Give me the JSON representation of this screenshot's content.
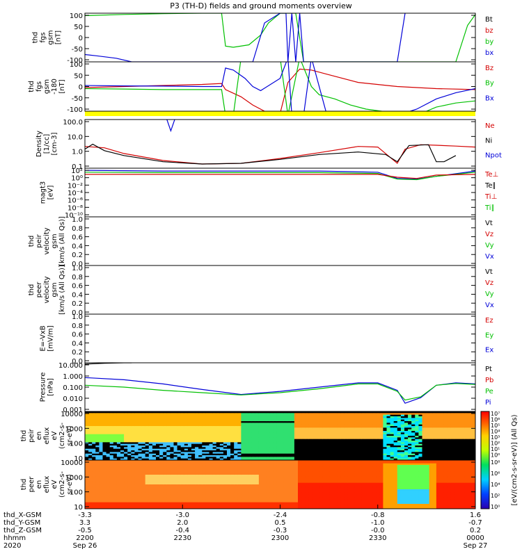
{
  "title": "P3 (TH-D) fields and ground moments overview",
  "colors": {
    "black": "#000000",
    "red": "#d40000",
    "green": "#00c000",
    "blue": "#0000d8",
    "yellow": "#ffff00",
    "axis": "#000000"
  },
  "chart_data": [
    {
      "panel": "fgs_gsm",
      "type": "line",
      "ylabel_lines": [
        "thd",
        "fgs",
        "gsm",
        "[nT]"
      ],
      "ylim": [
        -100,
        100
      ],
      "yticks": [
        "100",
        "50",
        "0",
        "-50",
        "-100"
      ],
      "legend": [
        {
          "label": "Bt",
          "color": "#000000"
        },
        {
          "label": "bz",
          "color": "#d40000"
        },
        {
          "label": "by",
          "color": "#00c000"
        },
        {
          "label": "bx",
          "color": "#0000d8"
        }
      ],
      "series": [
        {
          "name": "by",
          "color": "#00c000",
          "x": [
            0,
            0.1,
            0.2,
            0.3,
            0.35,
            0.36,
            0.38,
            0.42,
            0.45,
            0.47,
            0.5,
            0.54,
            0.56,
            0.6,
            0.95,
            0.98,
            1.0
          ],
          "y": [
            90,
            95,
            98,
            100,
            100,
            -35,
            -40,
            -30,
            10,
            60,
            100,
            100,
            -100,
            -100,
            -100,
            50,
            95
          ]
        },
        {
          "name": "bx",
          "color": "#0000d8",
          "x": [
            0,
            0.03,
            0.08,
            0.12,
            0.43,
            0.46,
            0.5,
            0.515,
            0.52,
            0.53,
            0.54,
            0.55,
            0.56,
            0.8,
            0.82
          ],
          "y": [
            -70,
            -75,
            -85,
            -100,
            -100,
            60,
            100,
            100,
            -100,
            100,
            -100,
            100,
            -100,
            -100,
            100
          ]
        }
      ]
    },
    {
      "panel": "fgs_gse",
      "type": "line",
      "ylabel_lines": [
        "thd",
        "fgs",
        "gsm",
        "-180",
        "[nT]"
      ],
      "ylim": [
        -120,
        120
      ],
      "yticks": [
        "100",
        "50",
        "0",
        "-50",
        "-100"
      ],
      "legend": [
        {
          "label": "Bz",
          "color": "#d40000"
        },
        {
          "label": "By",
          "color": "#00c000"
        },
        {
          "label": "Bx",
          "color": "#0000d8"
        }
      ],
      "series": [
        {
          "name": "Bz",
          "color": "#d40000",
          "x": [
            0,
            0.1,
            0.2,
            0.3,
            0.35,
            0.36,
            0.4,
            0.43,
            0.47,
            0.5,
            0.52,
            0.55,
            0.58,
            0.62,
            0.7,
            0.8,
            0.9,
            1.0
          ],
          "y": [
            -5,
            0,
            5,
            10,
            15,
            -15,
            -50,
            -90,
            -130,
            -130,
            20,
            85,
            80,
            60,
            20,
            0,
            -10,
            -15
          ]
        },
        {
          "name": "By",
          "color": "#00c000",
          "x": [
            0,
            0.1,
            0.2,
            0.3,
            0.35,
            0.36,
            0.38,
            0.4,
            0.5,
            0.52,
            0.55,
            0.58,
            0.6,
            0.64,
            0.68,
            0.72,
            0.8,
            0.85,
            0.9,
            0.95,
            1.0
          ],
          "y": [
            -10,
            -12,
            -15,
            -15,
            -15,
            -140,
            -140,
            140,
            140,
            -140,
            140,
            0,
            -40,
            -60,
            -90,
            -110,
            -130,
            -140,
            -100,
            -80,
            -70
          ]
        },
        {
          "name": "Bx",
          "color": "#0000d8",
          "x": [
            0,
            0.1,
            0.2,
            0.3,
            0.35,
            0.36,
            0.38,
            0.41,
            0.43,
            0.45,
            0.5,
            0.52,
            0.53,
            0.56,
            0.58,
            0.62,
            0.8,
            0.85,
            0.9,
            0.95,
            1.0
          ],
          "y": [
            5,
            3,
            2,
            0,
            0,
            90,
            80,
            40,
            0,
            -20,
            40,
            140,
            -140,
            -140,
            140,
            -140,
            -140,
            -110,
            -60,
            -30,
            -10
          ]
        }
      ]
    },
    {
      "panel": "density",
      "type": "line",
      "ylog": true,
      "ylabel_lines": [
        "Density",
        "[1/cc]",
        "[cm-3]"
      ],
      "ylim": [
        0.1,
        100
      ],
      "yticks": [
        "100.0",
        "10.0",
        "1.0",
        "0.1"
      ],
      "legend": [
        {
          "label": "Ne",
          "color": "#d40000"
        },
        {
          "label": "Ni",
          "color": "#000000"
        },
        {
          "label": "Npot",
          "color": "#0000d8"
        }
      ],
      "series": [
        {
          "name": "Ne",
          "color": "#d40000",
          "x": [
            0,
            0.05,
            0.1,
            0.2,
            0.3,
            0.4,
            0.5,
            0.6,
            0.7,
            0.75,
            0.8,
            0.82,
            0.86,
            0.9,
            0.95,
            1.0
          ],
          "y": [
            2.2,
            1.8,
            0.8,
            0.3,
            0.18,
            0.2,
            0.4,
            0.9,
            2.2,
            2.0,
            0.2,
            1.5,
            2.8,
            2.6,
            2.3,
            2.0
          ]
        },
        {
          "name": "Ni",
          "color": "#000000",
          "x": [
            0,
            0.02,
            0.05,
            0.1,
            0.2,
            0.3,
            0.4,
            0.5,
            0.6,
            0.7,
            0.77,
            0.8,
            0.83,
            0.88,
            0.9,
            0.92,
            0.95
          ],
          "y": [
            1.5,
            3,
            1.2,
            0.6,
            0.25,
            0.18,
            0.2,
            0.35,
            0.7,
            1.0,
            0.7,
            0.25,
            2.5,
            2.8,
            0.25,
            0.25,
            0.6
          ]
        },
        {
          "name": "Npot",
          "color": "#0000d8",
          "x": [
            0.21,
            0.22,
            0.23
          ],
          "y": [
            100,
            20,
            100
          ]
        }
      ]
    },
    {
      "panel": "temperature",
      "type": "line",
      "ylog": true,
      "ylabel_lines": [
        "magt3",
        "[eV]"
      ],
      "ylim": [
        1e-10,
        100
      ],
      "yticks": [
        "10²",
        "10⁰",
        "10⁻²",
        "10⁻⁴",
        "10⁻⁶",
        "10⁻⁸",
        "10⁻¹⁰"
      ],
      "legend": [
        {
          "label": "Te⊥",
          "color": "#d40000"
        },
        {
          "label": "Te∥",
          "color": "#000000"
        },
        {
          "label": "Ti⊥",
          "color": "#d40000"
        },
        {
          "label": "Ti∥",
          "color": "#00c000"
        }
      ],
      "series": [
        {
          "name": "Ti",
          "color": "#0000d8",
          "x": [
            0,
            0.2,
            0.4,
            0.6,
            0.75,
            0.8,
            0.85,
            0.9,
            1.0
          ],
          "y": [
            30,
            20,
            20,
            20,
            10,
            0.3,
            0.2,
            1,
            20
          ]
        },
        {
          "name": "Ti∥",
          "color": "#00c000",
          "x": [
            0,
            0.2,
            0.4,
            0.6,
            0.75,
            0.8,
            0.85,
            0.9,
            1.0
          ],
          "y": [
            10,
            8,
            8,
            8,
            5,
            0.2,
            0.15,
            1,
            10
          ]
        },
        {
          "name": "Te",
          "color": "#d40000",
          "x": [
            0,
            0.2,
            0.4,
            0.6,
            0.75,
            0.8,
            0.85,
            0.9,
            1.0
          ],
          "y": [
            3,
            3,
            3,
            3,
            3,
            0.6,
            0.3,
            2,
            3
          ]
        }
      ]
    },
    {
      "panel": "peir_velocity",
      "type": "line",
      "ylabel_lines": [
        "thd",
        "peir",
        "velocity",
        "gsm",
        "[km/s (All Qs)]"
      ],
      "ylim": [
        0,
        1
      ],
      "yticks": [
        "1.0",
        "0.8",
        "0.6",
        "0.4",
        "0.2",
        "0.0"
      ],
      "legend": [
        {
          "label": "Vt",
          "color": "#000000"
        },
        {
          "label": "Vz",
          "color": "#d40000"
        },
        {
          "label": "Vy",
          "color": "#00c000"
        },
        {
          "label": "Vx",
          "color": "#0000d8"
        }
      ],
      "series": []
    },
    {
      "panel": "peer_velocity",
      "type": "line",
      "ylabel_lines": [
        "thd",
        "peer",
        "velocity",
        "gsm",
        "[km/s (All Qs)]"
      ],
      "ylim": [
        0,
        1
      ],
      "yticks": [
        "1.0",
        "0.8",
        "0.6",
        "0.4",
        "0.2",
        "0.0"
      ],
      "legend": [
        {
          "label": "Vt",
          "color": "#000000"
        },
        {
          "label": "Vz",
          "color": "#d40000"
        },
        {
          "label": "Vy",
          "color": "#00c000"
        },
        {
          "label": "Vx",
          "color": "#0000d8"
        }
      ],
      "series": []
    },
    {
      "panel": "efield",
      "type": "line",
      "ylabel_lines": [
        "E=-VxB",
        "[mV/m]"
      ],
      "ylim": [
        0,
        1
      ],
      "yticks": [
        "1.0",
        "0.8",
        "0.6",
        "0.4",
        "0.2",
        "0.0"
      ],
      "legend": [
        {
          "label": "Ez",
          "color": "#d40000"
        },
        {
          "label": "Ey",
          "color": "#00c000"
        },
        {
          "label": "Ex",
          "color": "#0000d8"
        }
      ],
      "series": []
    },
    {
      "panel": "pressure",
      "type": "line",
      "ylog": true,
      "ylabel_lines": [
        "Pressure",
        "[nPa]"
      ],
      "ylim": [
        0.0005,
        20
      ],
      "yticks": [
        "10.000",
        "1.000",
        "0.100",
        "0.010",
        "0.001"
      ],
      "legend": [
        {
          "label": "Pt",
          "color": "#000000"
        },
        {
          "label": "Pb",
          "color": "#d40000"
        },
        {
          "label": "Pe",
          "color": "#00c000"
        },
        {
          "label": "Pi",
          "color": "#0000d8"
        }
      ],
      "series": [
        {
          "name": "Pt",
          "color": "#000000",
          "x": [
            0,
            0.05,
            0.1,
            0.12
          ],
          "y": [
            15,
            18,
            20,
            20
          ]
        },
        {
          "name": "Pi",
          "color": "#0000d8",
          "x": [
            0,
            0.1,
            0.2,
            0.3,
            0.4,
            0.5,
            0.6,
            0.7,
            0.75,
            0.8,
            0.82,
            0.86,
            0.9,
            0.95,
            1.0
          ],
          "y": [
            0.8,
            0.5,
            0.2,
            0.06,
            0.02,
            0.04,
            0.1,
            0.25,
            0.25,
            0.05,
            0.003,
            0.01,
            0.15,
            0.25,
            0.2
          ]
        },
        {
          "name": "Pe",
          "color": "#00c000",
          "x": [
            0,
            0.1,
            0.2,
            0.3,
            0.4,
            0.5,
            0.6,
            0.7,
            0.75,
            0.8,
            0.82,
            0.86,
            0.9,
            0.95,
            1.0
          ],
          "y": [
            0.15,
            0.1,
            0.05,
            0.03,
            0.018,
            0.03,
            0.07,
            0.2,
            0.2,
            0.04,
            0.006,
            0.012,
            0.15,
            0.22,
            0.18
          ]
        }
      ]
    },
    {
      "panel": "peir_spectrogram",
      "type": "heatmap",
      "ylabel_lines": [
        "thd",
        "peir",
        "en",
        "eflux",
        "eV",
        "(cm2-s-",
        "sr-eV)"
      ],
      "yticks": [
        "10000",
        "1000",
        "100",
        "10"
      ]
    },
    {
      "panel": "peer_spectrogram",
      "type": "heatmap",
      "ylabel_lines": [
        "thd",
        "peer",
        "en",
        "eflux",
        "eV",
        "(cm2-s-",
        "sr-eV)"
      ],
      "yticks": [
        "10000",
        "1000",
        "100",
        "10"
      ]
    }
  ],
  "colorbar": {
    "label": "[eV/(cm2-s-sr-eV)] (All Qs)",
    "labels_top": [
      "10⁷",
      "10⁶",
      "10⁵",
      "10⁴",
      "10³",
      "10²",
      "10¹",
      "10⁰"
    ],
    "labels_bottom": [
      "10⁸",
      "10⁶",
      "10⁴",
      "10²",
      "10⁰"
    ]
  },
  "x_axis": {
    "tick_fractions": [
      0,
      0.25,
      0.5,
      0.75,
      1.0
    ],
    "row_labels": [
      "thd_X-GSM",
      "thd_Y-GSM",
      "thd_Z-GSM",
      "hhmm",
      "2020"
    ],
    "rows": [
      [
        "-3.3",
        "-3.0",
        "-2.4",
        "-0.8",
        "1.6"
      ],
      [
        "3.3",
        "2.0",
        "0.5",
        "-1.0",
        "-0.7"
      ],
      [
        "-0.5",
        "-0.4",
        "-0.3",
        "-0.0",
        "0.2"
      ],
      [
        "2200",
        "2230",
        "2300",
        "2330",
        "0000"
      ],
      [
        "Sep 26",
        "",
        "",
        "",
        "Sep 27"
      ]
    ]
  }
}
